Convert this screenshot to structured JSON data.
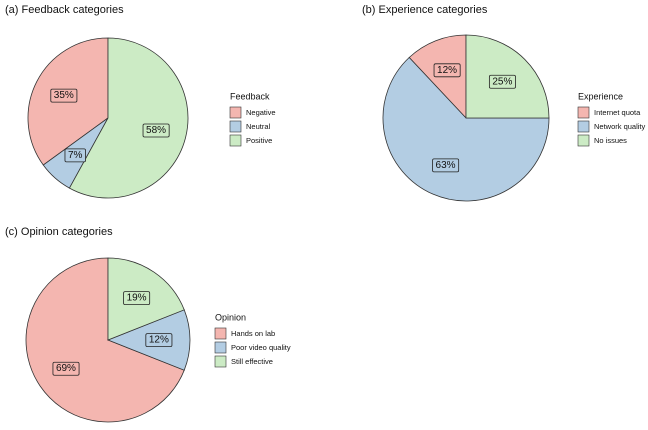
{
  "chart_data": [
    {
      "type": "pie",
      "title": "(a) Feedback categories",
      "legend_title": "Feedback",
      "categories": [
        "Negative",
        "Neutral",
        "Positive"
      ],
      "values": [
        35,
        7,
        58
      ],
      "value_labels": [
        "35%",
        "7%",
        "58%"
      ],
      "colors": [
        "#f4b6b0",
        "#b3cde3",
        "#ccebc5"
      ]
    },
    {
      "type": "pie",
      "title": "(b) Experience categories",
      "legend_title": "Experience",
      "categories": [
        "Internet quota",
        "Network quality",
        "No issues"
      ],
      "values": [
        12,
        63,
        25
      ],
      "value_labels": [
        "12%",
        "63%",
        "25%"
      ],
      "colors": [
        "#f4b6b0",
        "#b3cde3",
        "#ccebc5"
      ]
    },
    {
      "type": "pie",
      "title": "(c) Opinion categories",
      "legend_title": "Opinion",
      "categories": [
        "Hands on lab",
        "Poor video quality",
        "Still effective"
      ],
      "values": [
        69,
        12,
        19
      ],
      "value_labels": [
        "69%",
        "12%",
        "19%"
      ],
      "colors": [
        "#f4b6b0",
        "#b3cde3",
        "#ccebc5"
      ]
    }
  ]
}
